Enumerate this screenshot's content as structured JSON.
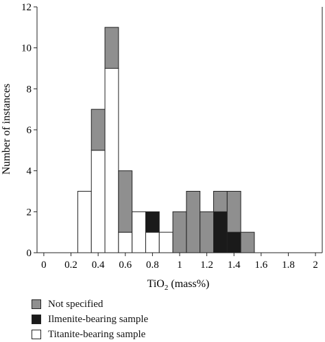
{
  "chart_data": {
    "type": "bar",
    "stacked": true,
    "xlabel": "TiO",
    "xlabel_sub": "2",
    "xlabel_rest": " (mass%)",
    "ylabel": "Number of instances",
    "xlim": [
      -0.05,
      2.05
    ],
    "ylim": [
      0,
      12
    ],
    "xticks": [
      "0",
      "0.2",
      "0.4",
      "0.6",
      "0.8",
      "1",
      "1.2",
      "1.4",
      "1.6",
      "1.8",
      "2"
    ],
    "yticks": [
      "0",
      "2",
      "4",
      "6",
      "8",
      "10",
      "12"
    ],
    "bin_width": 0.1,
    "bin_starts": [
      0.25,
      0.35,
      0.45,
      0.55,
      0.65,
      0.75,
      0.85,
      0.95,
      1.05,
      1.15,
      1.25,
      1.35,
      1.45
    ],
    "series": [
      {
        "name": "Titanite-bearing sample",
        "color": "#ffffff",
        "values": [
          3,
          5,
          9,
          1,
          2,
          1,
          1,
          0,
          0,
          0,
          0,
          0,
          0
        ]
      },
      {
        "name": "Ilmenite-bearing sample",
        "color": "#1a1a1a",
        "values": [
          0,
          0,
          0,
          0,
          0,
          1,
          0,
          0,
          0,
          0,
          2,
          1,
          0
        ]
      },
      {
        "name": "Not specified",
        "color": "#8f8f8f",
        "values": [
          0,
          2,
          2,
          3,
          0,
          0,
          0,
          2,
          3,
          2,
          1,
          2,
          1
        ]
      }
    ],
    "legend_position": "bottom-left",
    "legend_order": [
      2,
      1,
      0
    ]
  }
}
